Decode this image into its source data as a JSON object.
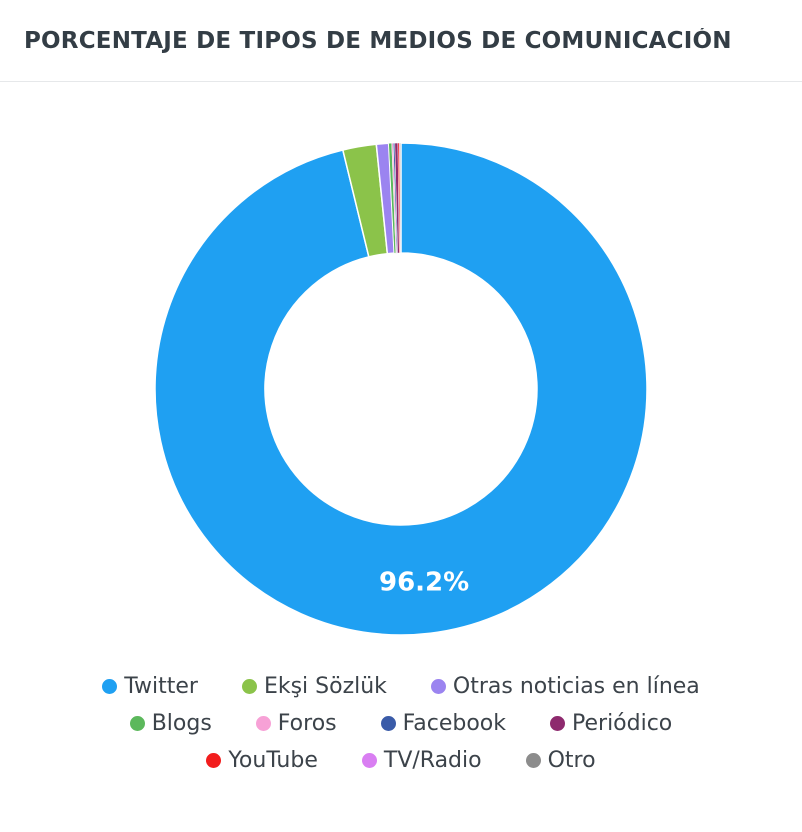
{
  "header": {
    "title": "PORCENTAJE DE TIPOS DE MEDIOS DE COMUNICACIÓN"
  },
  "chart_data": {
    "type": "pie",
    "donut": true,
    "title": "PORCENTAJE DE TIPOS DE MEDIOS DE COMUNICACIÓN",
    "legend_position": "bottom",
    "slices": [
      {
        "label": "Twitter",
        "value": 96.2,
        "color": "#1fa0f2",
        "display_label": "96.2%"
      },
      {
        "label": "Ekşi Sözlük",
        "value": 2.2,
        "color": "#8bc34a"
      },
      {
        "label": "Otras noticias en línea",
        "value": 0.8,
        "color": "#9b84f0"
      },
      {
        "label": "Blogs",
        "value": 0.2,
        "color": "#5cb85c"
      },
      {
        "label": "Foros",
        "value": 0.1,
        "color": "#f7a1d6"
      },
      {
        "label": "Facebook",
        "value": 0.1,
        "color": "#3a5ba8"
      },
      {
        "label": "Periódico",
        "value": 0.2,
        "color": "#8e2a6e"
      },
      {
        "label": "YouTube",
        "value": 0.1,
        "color": "#f21d1d"
      },
      {
        "label": "TV/Radio",
        "value": 0.05,
        "color": "#d97ef2"
      },
      {
        "label": "Otro",
        "value": 0.05,
        "color": "#8c8c8c"
      }
    ]
  }
}
